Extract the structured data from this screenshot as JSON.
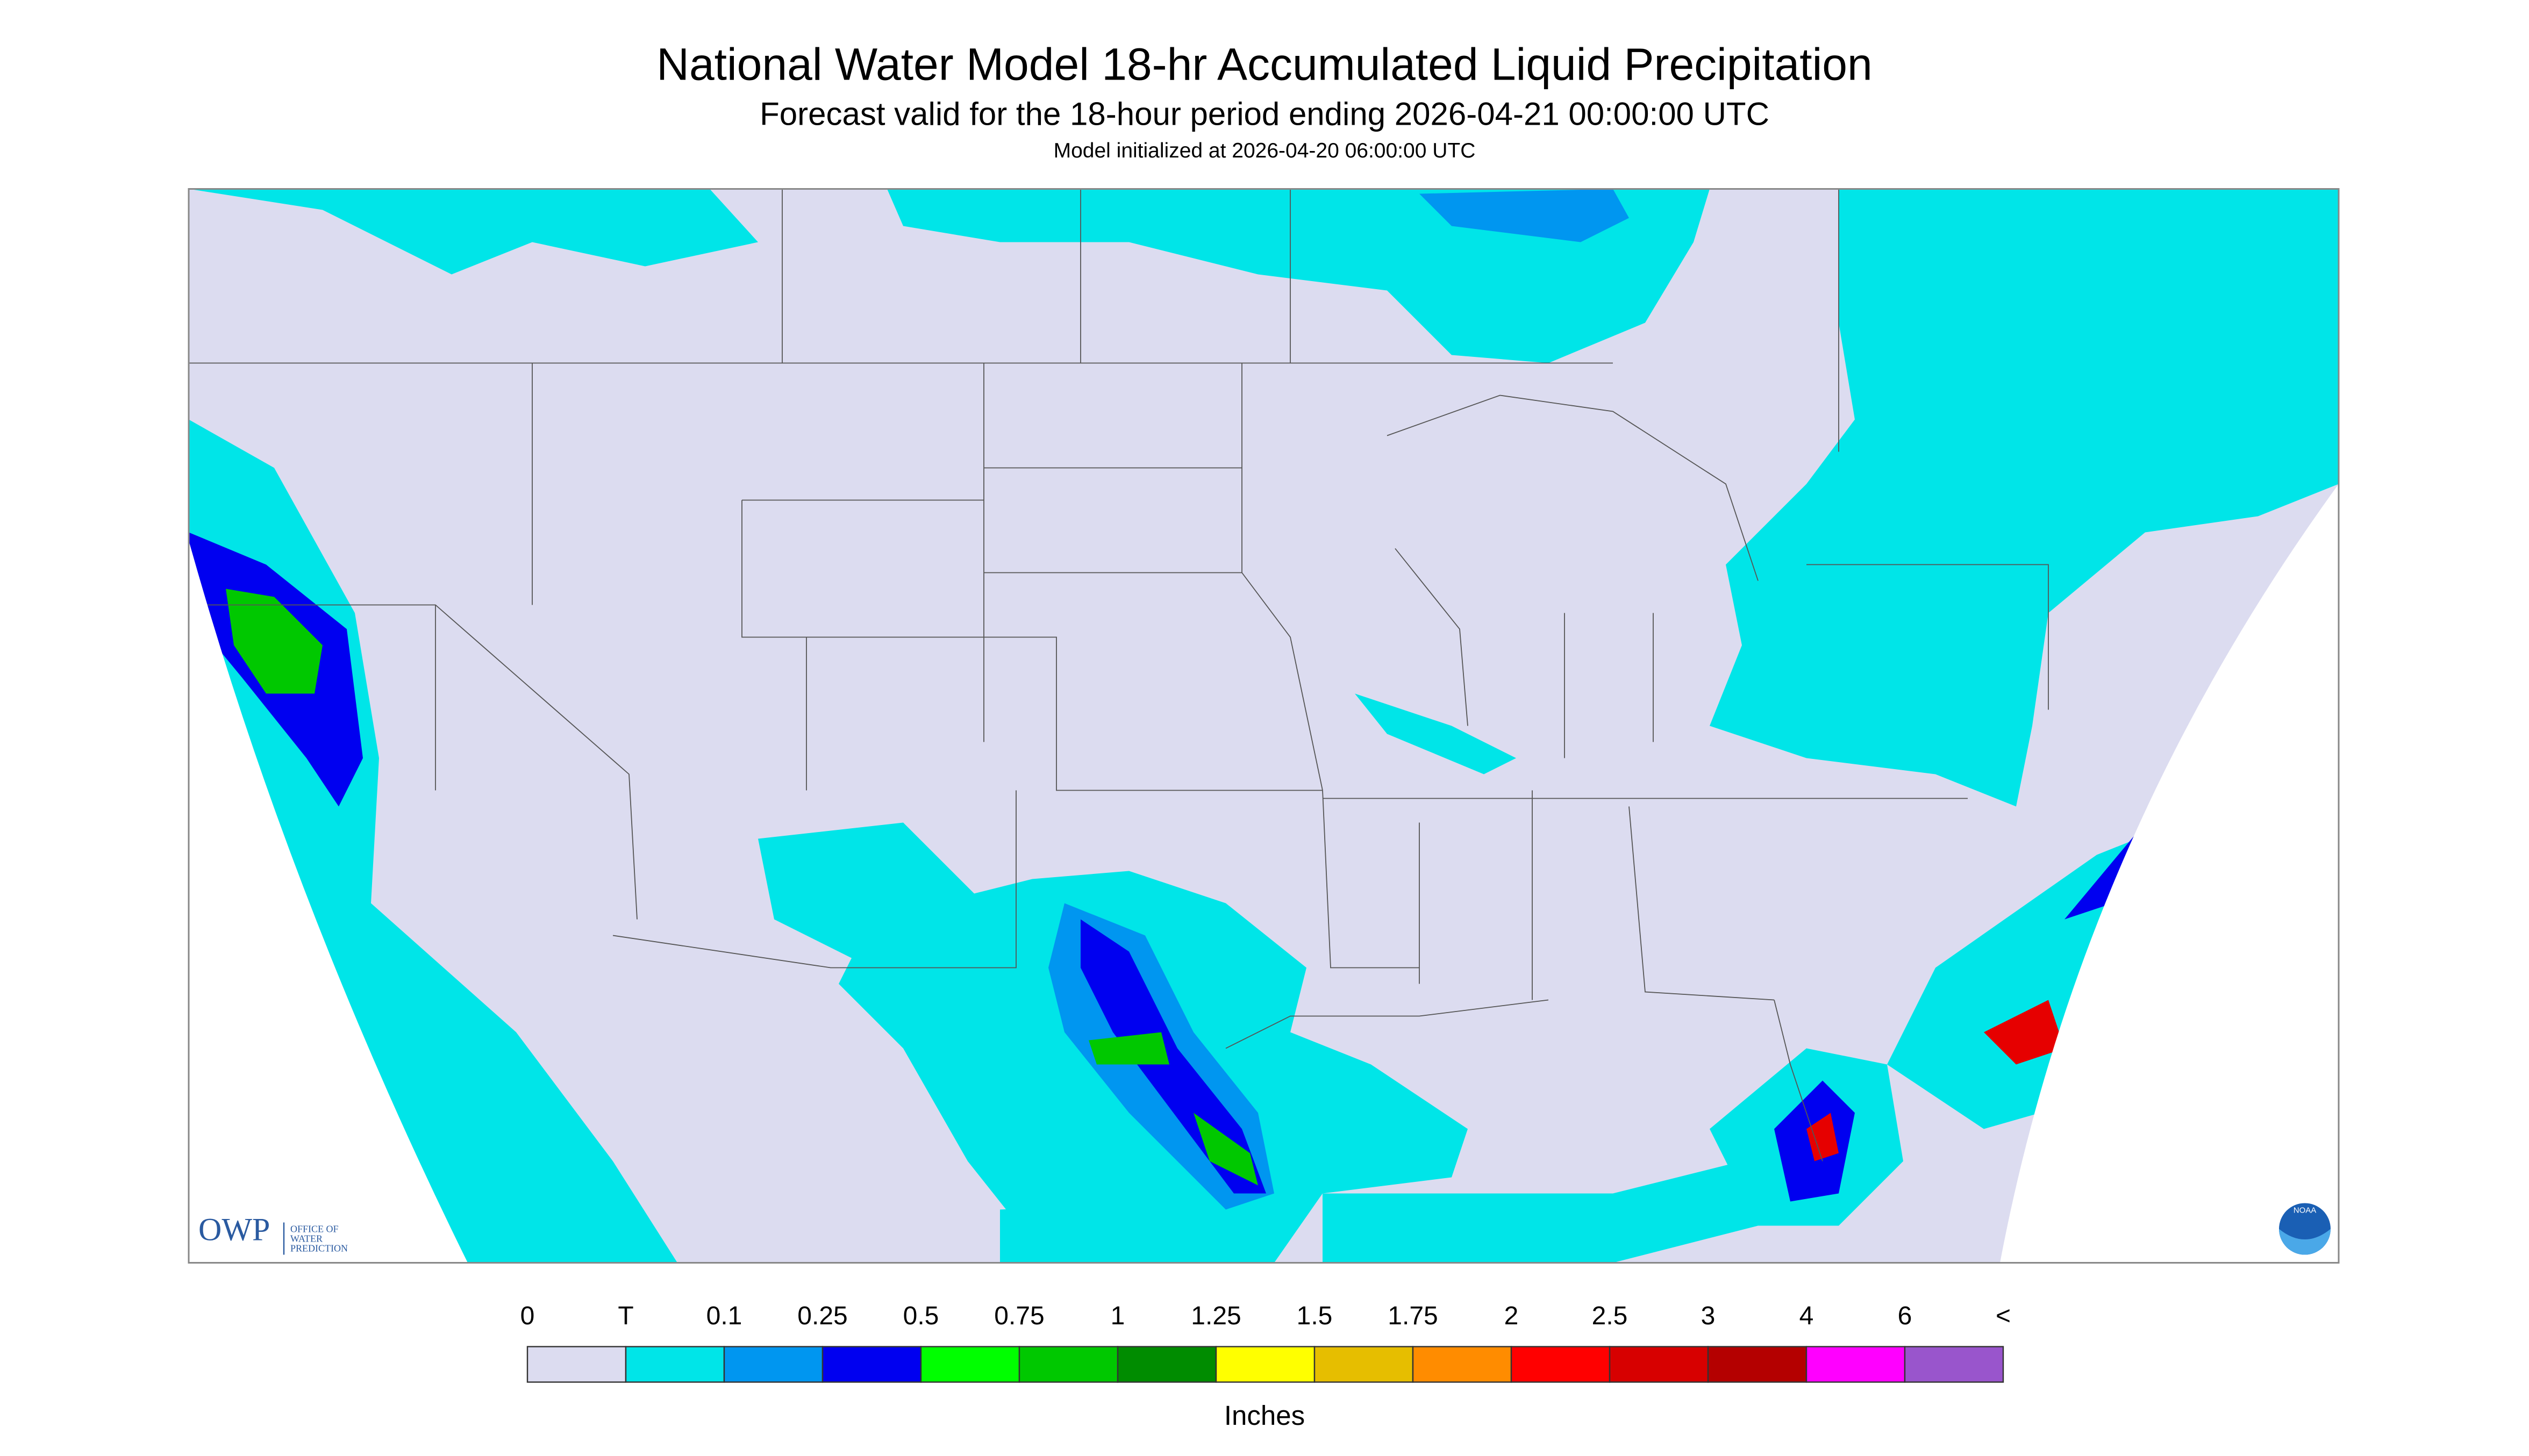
{
  "header": {
    "title": "National Water Model 18-hr Accumulated Liquid Precipitation",
    "subtitle": "Forecast valid for the 18-hour period ending 2026-04-21 00:00:00 UTC",
    "initialized": "Model initialized at 2026-04-20 06:00:00 UTC"
  },
  "legend": {
    "labels": [
      "0",
      "T",
      "0.1",
      "0.25",
      "0.5",
      "0.75",
      "1",
      "1.25",
      "1.5",
      "1.75",
      "2",
      "2.5",
      "3",
      "4",
      "6",
      "<"
    ],
    "colors": [
      "#dcdcf0",
      "#00e5e8",
      "#0096f0",
      "#0000f0",
      "#00ff00",
      "#00c800",
      "#008c00",
      "#ffff00",
      "#e6be00",
      "#ff8c00",
      "#ff0000",
      "#d70000",
      "#b40000",
      "#ff00ff",
      "#9955cc"
    ],
    "unit": "Inches"
  },
  "logo": {
    "owp": "OWP",
    "office": [
      "OFFICE OF",
      "WATER",
      "PREDICTION"
    ],
    "noaa": "NOAA"
  }
}
